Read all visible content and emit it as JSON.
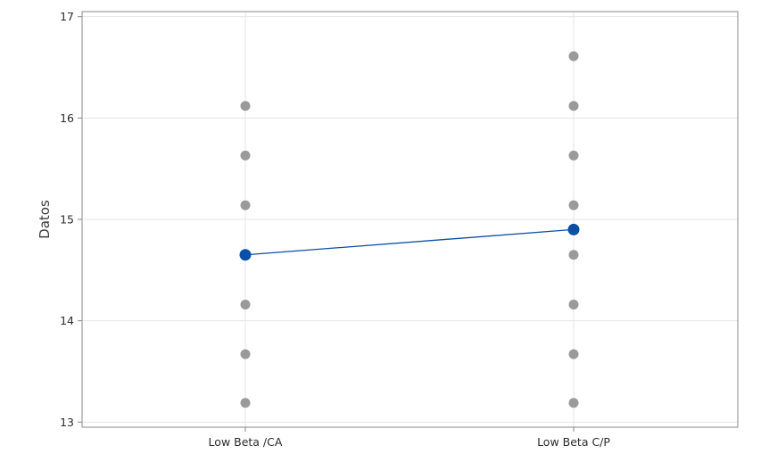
{
  "chart_data": {
    "type": "scatter",
    "title": "",
    "xlabel": "",
    "ylabel": "Datos",
    "categories": [
      "Low Beta /CA",
      "Low Beta C/P"
    ],
    "ylim": [
      12.95,
      17.05
    ],
    "yticks": [
      13,
      14,
      15,
      16,
      17
    ],
    "grid": true,
    "legend": "none",
    "points": [
      {
        "category": "Low Beta /CA",
        "values": [
          13.19,
          13.67,
          14.16,
          15.14,
          15.63,
          16.12
        ]
      },
      {
        "category": "Low Beta C/P",
        "values": [
          13.19,
          13.67,
          14.16,
          14.65,
          15.14,
          15.63,
          16.12,
          16.61
        ]
      }
    ],
    "mean_line": {
      "values": [
        14.65,
        14.9
      ]
    },
    "colors": {
      "points": "#9a9a9a",
      "mean": "#0a4fa6",
      "grid": "#e6e6e6",
      "frame": "#8a8a8a"
    }
  }
}
